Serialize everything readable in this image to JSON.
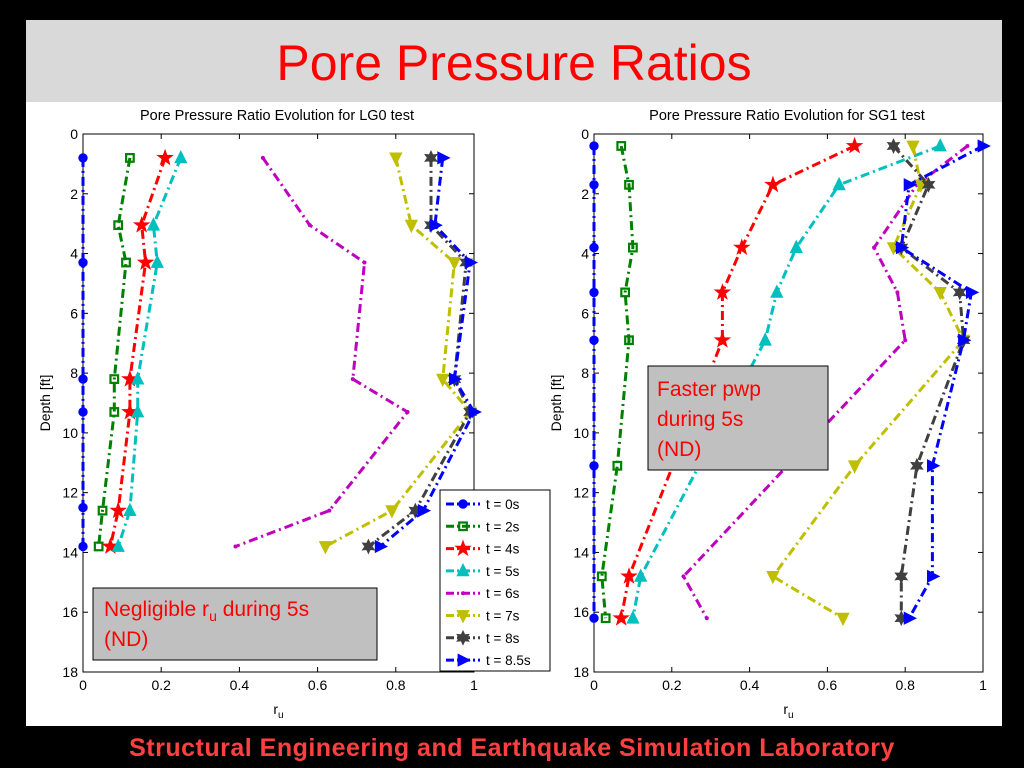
{
  "slide": {
    "title": "Pore Pressure Ratios",
    "footer": "Structural Engineering and Earthquake Simulation Laboratory",
    "colors": {
      "title": "#ff0000",
      "footer": "#ff4040",
      "title_band": "#d9d9d9"
    }
  },
  "chart_data": [
    {
      "type": "line",
      "title": "Pore Pressure Ratio Evolution for LG0 test",
      "xlabel": "r",
      "xlabel_sub": "u",
      "ylabel": "Depth [ft]",
      "xlim": [
        0,
        1
      ],
      "ylim": [
        0,
        18
      ],
      "y_inverted": true,
      "x_ticks": [
        "0",
        "0.2",
        "0.4",
        "0.6",
        "0.8",
        "1"
      ],
      "y_ticks": [
        "0",
        "2",
        "4",
        "6",
        "8",
        "10",
        "12",
        "14",
        "16",
        "18"
      ],
      "grid": false,
      "legend": "bottom-right",
      "annotation": {
        "text": "Negligible r",
        "sub": "u",
        "text2": " during 5s",
        "line2": "(ND)"
      },
      "series": [
        {
          "name": "t = 0s",
          "color": "#0000ff",
          "marker": "circle",
          "x": [
            0,
            0,
            0,
            0,
            0,
            0
          ],
          "y": [
            0.8,
            4.3,
            8.2,
            9.3,
            12.5,
            13.8
          ]
        },
        {
          "name": "t = 2s",
          "color": "#008000",
          "marker": "square",
          "x": [
            0.12,
            0.09,
            0.11,
            0.08,
            0.08,
            0.05,
            0.04
          ],
          "y": [
            0.8,
            3.05,
            4.3,
            8.2,
            9.3,
            12.6,
            13.8
          ]
        },
        {
          "name": "t = 4s",
          "color": "#ff0000",
          "marker": "star",
          "x": [
            0.21,
            0.15,
            0.16,
            0.12,
            0.12,
            0.09,
            0.07
          ],
          "y": [
            0.8,
            3.05,
            4.3,
            8.2,
            9.3,
            12.6,
            13.8
          ]
        },
        {
          "name": "t = 5s",
          "color": "#00bfbf",
          "marker": "triangle-up",
          "x": [
            0.25,
            0.18,
            0.19,
            0.14,
            0.14,
            0.12,
            0.09
          ],
          "y": [
            0.8,
            3.05,
            4.3,
            8.2,
            9.3,
            12.6,
            13.8
          ]
        },
        {
          "name": "t = 6s",
          "color": "#bf00bf",
          "marker": "point",
          "x": [
            0.46,
            0.58,
            0.72,
            0.69,
            0.83,
            0.63,
            0.39
          ],
          "y": [
            0.8,
            3.05,
            4.3,
            8.2,
            9.3,
            12.6,
            13.8
          ]
        },
        {
          "name": "t = 7s",
          "color": "#bfbf00",
          "marker": "triangle-down",
          "x": [
            0.8,
            0.84,
            0.95,
            0.92,
            0.99,
            0.79,
            0.62
          ],
          "y": [
            0.8,
            3.05,
            4.3,
            8.2,
            9.3,
            12.6,
            13.8
          ]
        },
        {
          "name": "t = 8s",
          "color": "#404040",
          "marker": "hexagram",
          "x": [
            0.89,
            0.89,
            0.98,
            0.95,
            0.99,
            0.85,
            0.73
          ],
          "y": [
            0.8,
            3.05,
            4.3,
            8.2,
            9.3,
            12.6,
            13.8
          ]
        },
        {
          "name": "t = 8.5s",
          "color": "#0000ff",
          "marker": "triangle-right",
          "x": [
            0.92,
            0.9,
            0.99,
            0.95,
            1.0,
            0.87,
            0.76
          ],
          "y": [
            0.8,
            3.05,
            4.3,
            8.2,
            9.3,
            12.6,
            13.8
          ]
        }
      ]
    },
    {
      "type": "line",
      "title": "Pore Pressure Ratio Evolution for SG1 test",
      "xlabel": "r",
      "xlabel_sub": "u",
      "ylabel": "Depth [ft]",
      "xlim": [
        0,
        1
      ],
      "ylim": [
        0,
        18
      ],
      "y_inverted": true,
      "x_ticks": [
        "0",
        "0.2",
        "0.4",
        "0.6",
        "0.8",
        "1"
      ],
      "y_ticks": [
        "0",
        "2",
        "4",
        "6",
        "8",
        "10",
        "12",
        "14",
        "16",
        "18"
      ],
      "grid": false,
      "legend": "",
      "annotation": {
        "text": "Faster pwp",
        "line2": "during 5s",
        "line3": "(ND)"
      },
      "series": [
        {
          "name": "t = 0s",
          "color": "#0000ff",
          "marker": "circle",
          "x": [
            0,
            0,
            0,
            0,
            0,
            0,
            0
          ],
          "y": [
            0.4,
            1.7,
            3.8,
            5.3,
            6.9,
            11.1,
            16.2
          ]
        },
        {
          "name": "t = 2s",
          "color": "#008000",
          "marker": "square",
          "x": [
            0.07,
            0.09,
            0.1,
            0.08,
            0.09,
            0.06,
            0.02,
            0.03
          ],
          "y": [
            0.4,
            1.7,
            3.8,
            5.3,
            6.9,
            11.1,
            14.8,
            16.2
          ]
        },
        {
          "name": "t = 4s",
          "color": "#ff0000",
          "marker": "star",
          "x": [
            0.67,
            0.46,
            0.38,
            0.33,
            0.33,
            0.09,
            0.07
          ],
          "y": [
            0.4,
            1.7,
            3.8,
            5.3,
            6.9,
            14.8,
            16.2
          ]
        },
        {
          "name": "t = 5s",
          "color": "#00bfbf",
          "marker": "triangle-up",
          "x": [
            0.89,
            0.63,
            0.52,
            0.47,
            0.44,
            0.12,
            0.1
          ],
          "y": [
            0.4,
            1.7,
            3.8,
            5.3,
            6.9,
            14.8,
            16.2
          ]
        },
        {
          "name": "t = 6s",
          "color": "#bf00bf",
          "marker": "point",
          "x": [
            0.96,
            0.83,
            0.72,
            0.78,
            0.8,
            0.23,
            0.29
          ],
          "y": [
            0.4,
            1.7,
            3.8,
            5.3,
            6.9,
            14.8,
            16.2
          ]
        },
        {
          "name": "t = 7s",
          "color": "#bfbf00",
          "marker": "triangle-down",
          "x": [
            0.82,
            0.84,
            0.77,
            0.89,
            0.95,
            0.67,
            0.46,
            0.64
          ],
          "y": [
            0.4,
            1.7,
            3.8,
            5.3,
            6.9,
            11.1,
            14.8,
            16.2
          ]
        },
        {
          "name": "t = 8s",
          "color": "#404040",
          "marker": "hexagram",
          "x": [
            0.77,
            0.86,
            0.79,
            0.94,
            0.95,
            0.83,
            0.79,
            0.79
          ],
          "y": [
            0.4,
            1.7,
            3.8,
            5.3,
            6.9,
            11.1,
            14.8,
            16.2
          ]
        },
        {
          "name": "t = 8.5s",
          "color": "#0000ff",
          "marker": "triangle-right",
          "x": [
            1.0,
            0.81,
            0.79,
            0.97,
            0.95,
            0.87,
            0.87,
            0.81
          ],
          "y": [
            0.4,
            1.7,
            3.8,
            5.3,
            6.9,
            11.1,
            14.8,
            16.2
          ]
        }
      ]
    }
  ]
}
